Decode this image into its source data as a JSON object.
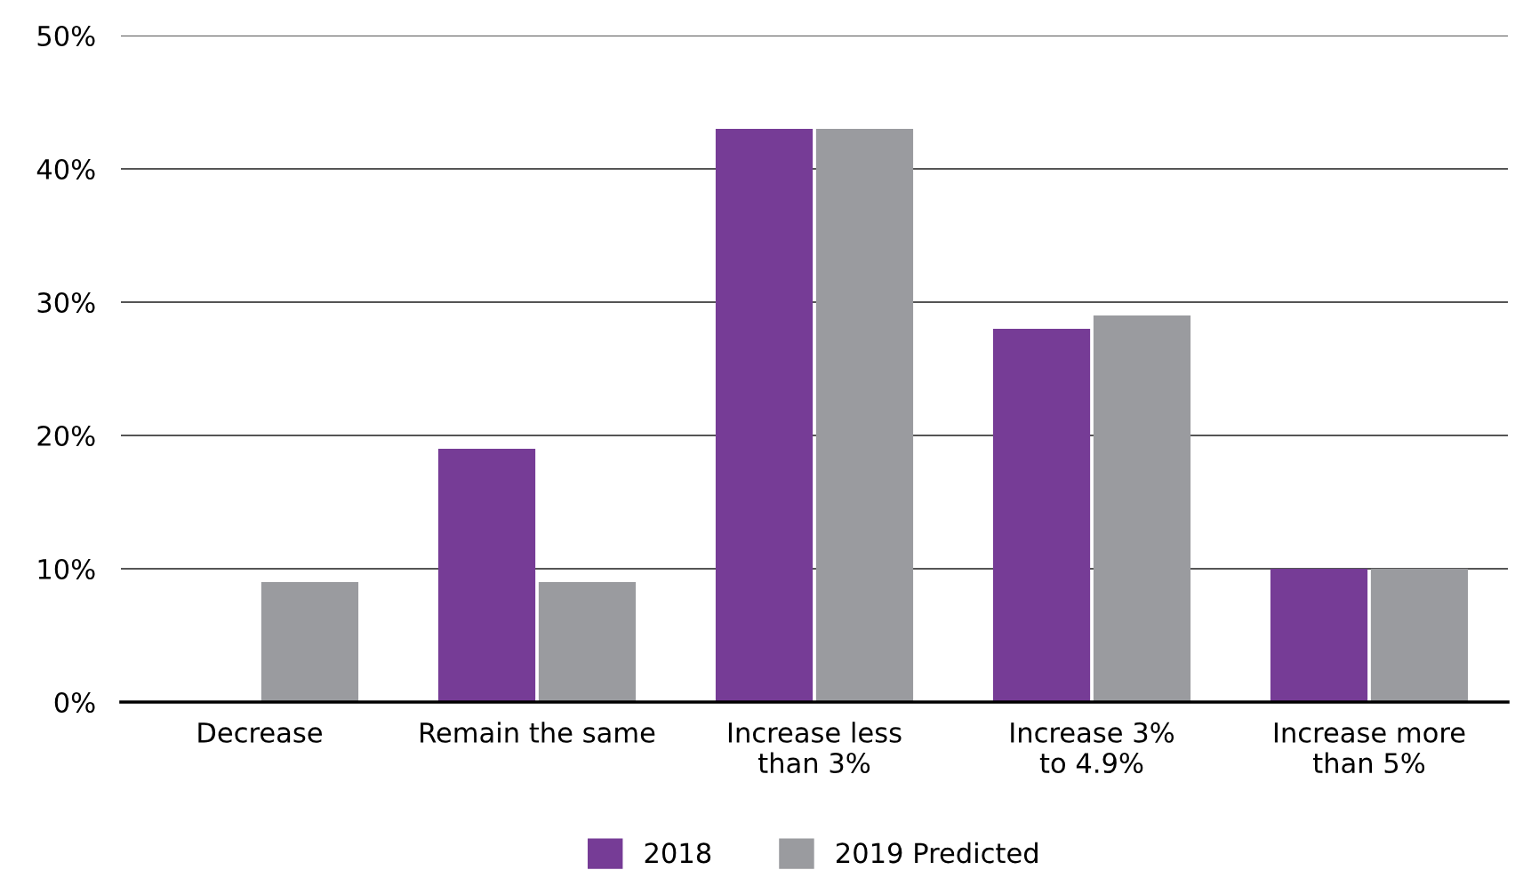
{
  "chart_data": {
    "type": "bar",
    "categories": [
      "Decrease",
      "Remain the same",
      "Increase less\nthan 3%",
      "Increase 3%\nto 4.9%",
      "Increase more\nthan 5%"
    ],
    "series": [
      {
        "name": "2018",
        "color": "#763c96",
        "values": [
          0,
          19,
          43,
          28,
          10
        ]
      },
      {
        "name": "2019 Predicted",
        "color": "#9a9b9f",
        "values": [
          9,
          9,
          43,
          29,
          10
        ]
      }
    ],
    "ylim": [
      0,
      50
    ],
    "yticks": [
      {
        "value": 0,
        "label": "0%"
      },
      {
        "value": 10,
        "label": "10%"
      },
      {
        "value": 20,
        "label": "20%"
      },
      {
        "value": 30,
        "label": "30%"
      },
      {
        "value": 40,
        "label": "40%"
      },
      {
        "value": 50,
        "label": "50%"
      }
    ],
    "grid": "y",
    "legend": "bottom"
  }
}
